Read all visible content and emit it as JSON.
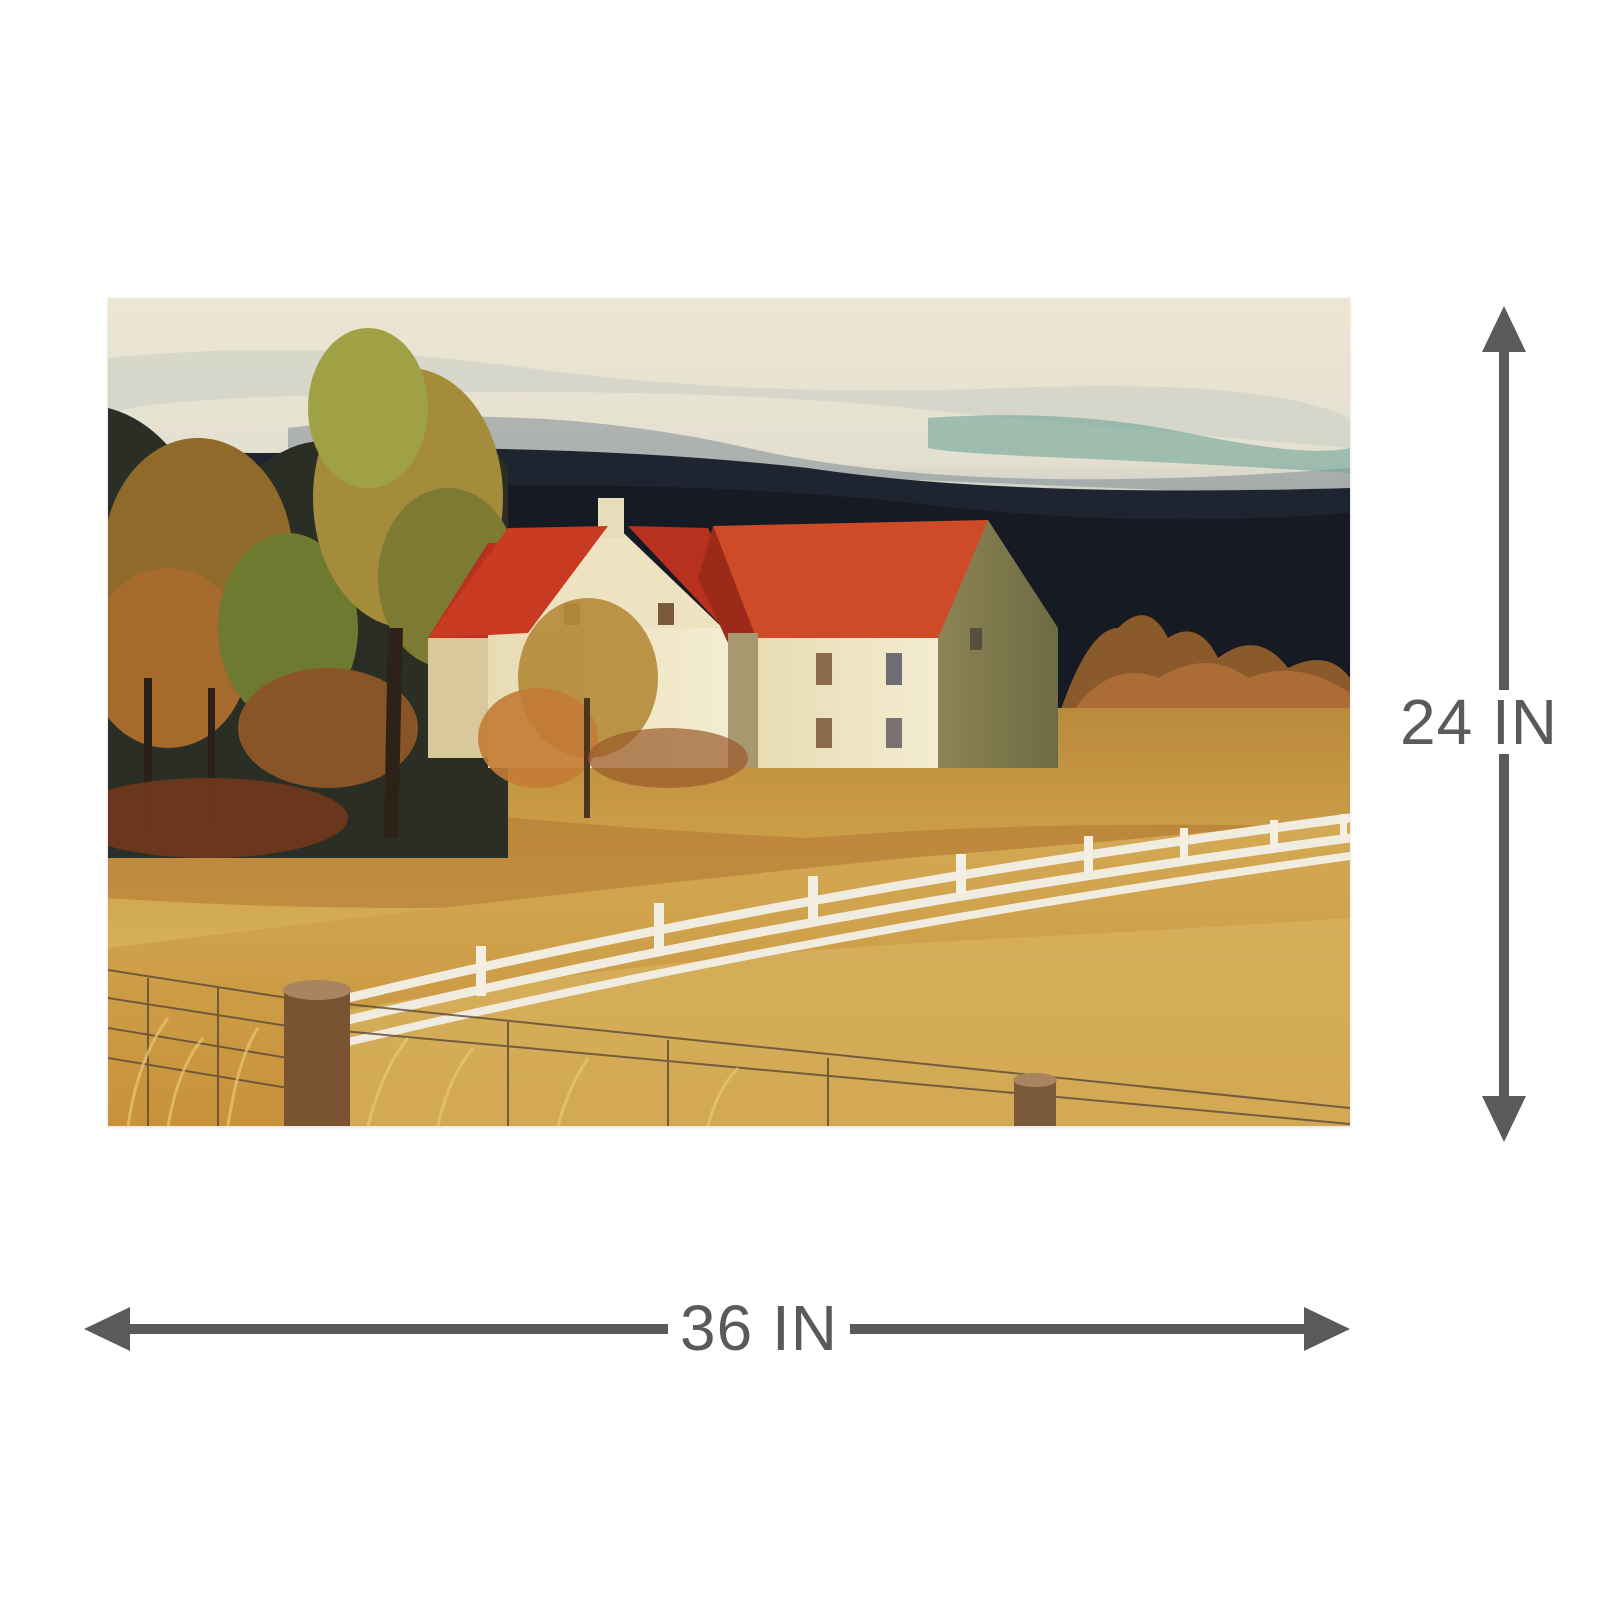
{
  "product": {
    "artwork_icon": "farmhouse-landscape-painting",
    "width_label": "36 IN",
    "height_label": "24 IN",
    "colors": {
      "dimension_gray": "#5a5a5a",
      "background": "#ffffff",
      "roof_red": "#c8351f",
      "field_gold": "#c9a04a",
      "fence_white": "#f1ece0"
    }
  }
}
